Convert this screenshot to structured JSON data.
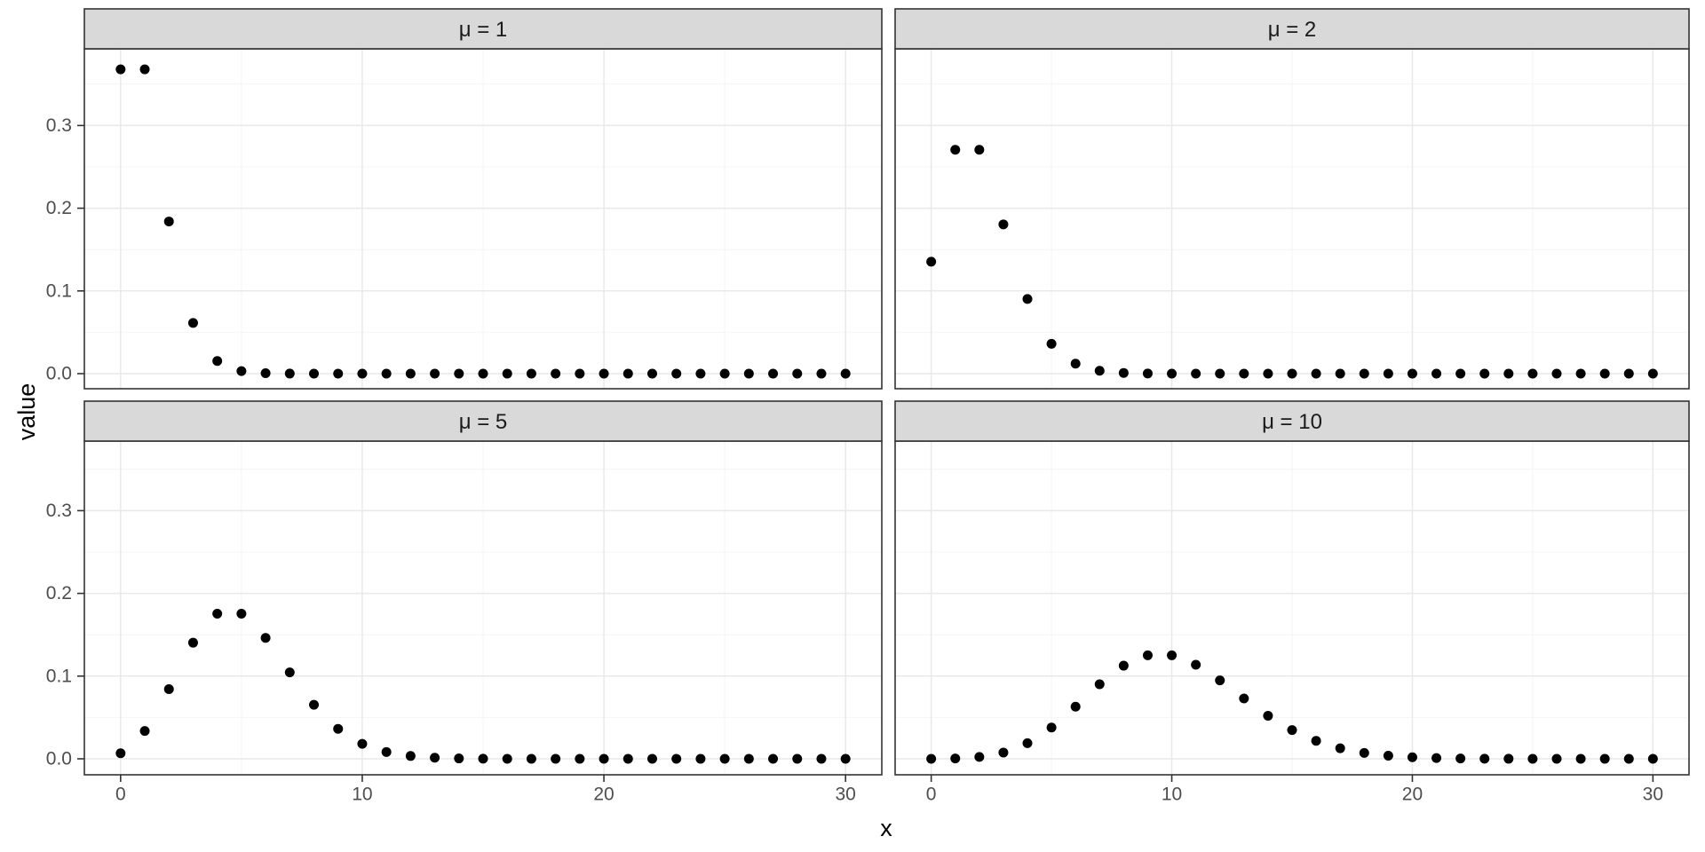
{
  "chart_data": {
    "type": "scatter",
    "description": "Poisson probability mass functions faceted by mean",
    "xlabel": "x",
    "ylabel": "value",
    "x": [
      0,
      1,
      2,
      3,
      4,
      5,
      6,
      7,
      8,
      9,
      10,
      11,
      12,
      13,
      14,
      15,
      16,
      17,
      18,
      19,
      20,
      21,
      22,
      23,
      24,
      25,
      26,
      27,
      28,
      29,
      30
    ],
    "x_ticks": [
      0,
      10,
      20,
      30
    ],
    "x_minor": [
      5,
      15,
      25
    ],
    "y_ticks": [
      0,
      0.1,
      0.2,
      0.3
    ],
    "y_tick_labels": [
      "0.0",
      "0.1",
      "0.2",
      "0.3"
    ],
    "y_minor": [
      0.05,
      0.15,
      0.25,
      0.35
    ],
    "xlim": [
      -1.5,
      31.5
    ],
    "ylim": [
      -0.0184,
      0.3863
    ],
    "grid": "on",
    "legend": "none",
    "point_color": "#000000",
    "strip_fill": "#d9d9d9",
    "grid_major_color": "#e9e9e9",
    "grid_minor_color": "#f4f4f4",
    "facets": [
      {
        "label": "μ = 1",
        "mu": 1,
        "values": [
          0.36788,
          0.36788,
          0.18394,
          0.06131,
          0.01533,
          0.00307,
          0.00051,
          7e-05,
          1e-05,
          0,
          0,
          0,
          0,
          0,
          0,
          0,
          0,
          0,
          0,
          0,
          0,
          0,
          0,
          0,
          0,
          0,
          0,
          0,
          0,
          0,
          0
        ]
      },
      {
        "label": "μ = 2",
        "mu": 2,
        "values": [
          0.13534,
          0.27067,
          0.27067,
          0.18045,
          0.09022,
          0.03609,
          0.01203,
          0.00344,
          0.00086,
          0.00019,
          4e-05,
          1e-05,
          0,
          0,
          0,
          0,
          0,
          0,
          0,
          0,
          0,
          0,
          0,
          0,
          0,
          0,
          0,
          0,
          0,
          0,
          0
        ]
      },
      {
        "label": "μ = 5",
        "mu": 5,
        "values": [
          0.00674,
          0.03369,
          0.08422,
          0.14037,
          0.17547,
          0.17547,
          0.14622,
          0.10444,
          0.06528,
          0.03627,
          0.01813,
          0.00824,
          0.00343,
          0.00132,
          0.00047,
          0.00016,
          5e-05,
          1e-05,
          0,
          0,
          0,
          0,
          0,
          0,
          0,
          0,
          0,
          0,
          0,
          0,
          0
        ]
      },
      {
        "label": "μ = 10",
        "mu": 10,
        "values": [
          5e-05,
          0.00045,
          0.00227,
          0.00757,
          0.01892,
          0.03783,
          0.06306,
          0.09008,
          0.1126,
          0.12511,
          0.12511,
          0.11374,
          0.09478,
          0.07291,
          0.05208,
          0.03472,
          0.0217,
          0.01276,
          0.00709,
          0.00373,
          0.00187,
          0.00089,
          0.0004,
          0.00018,
          8e-05,
          3e-05,
          1e-05,
          0,
          0,
          0,
          0
        ]
      }
    ]
  }
}
